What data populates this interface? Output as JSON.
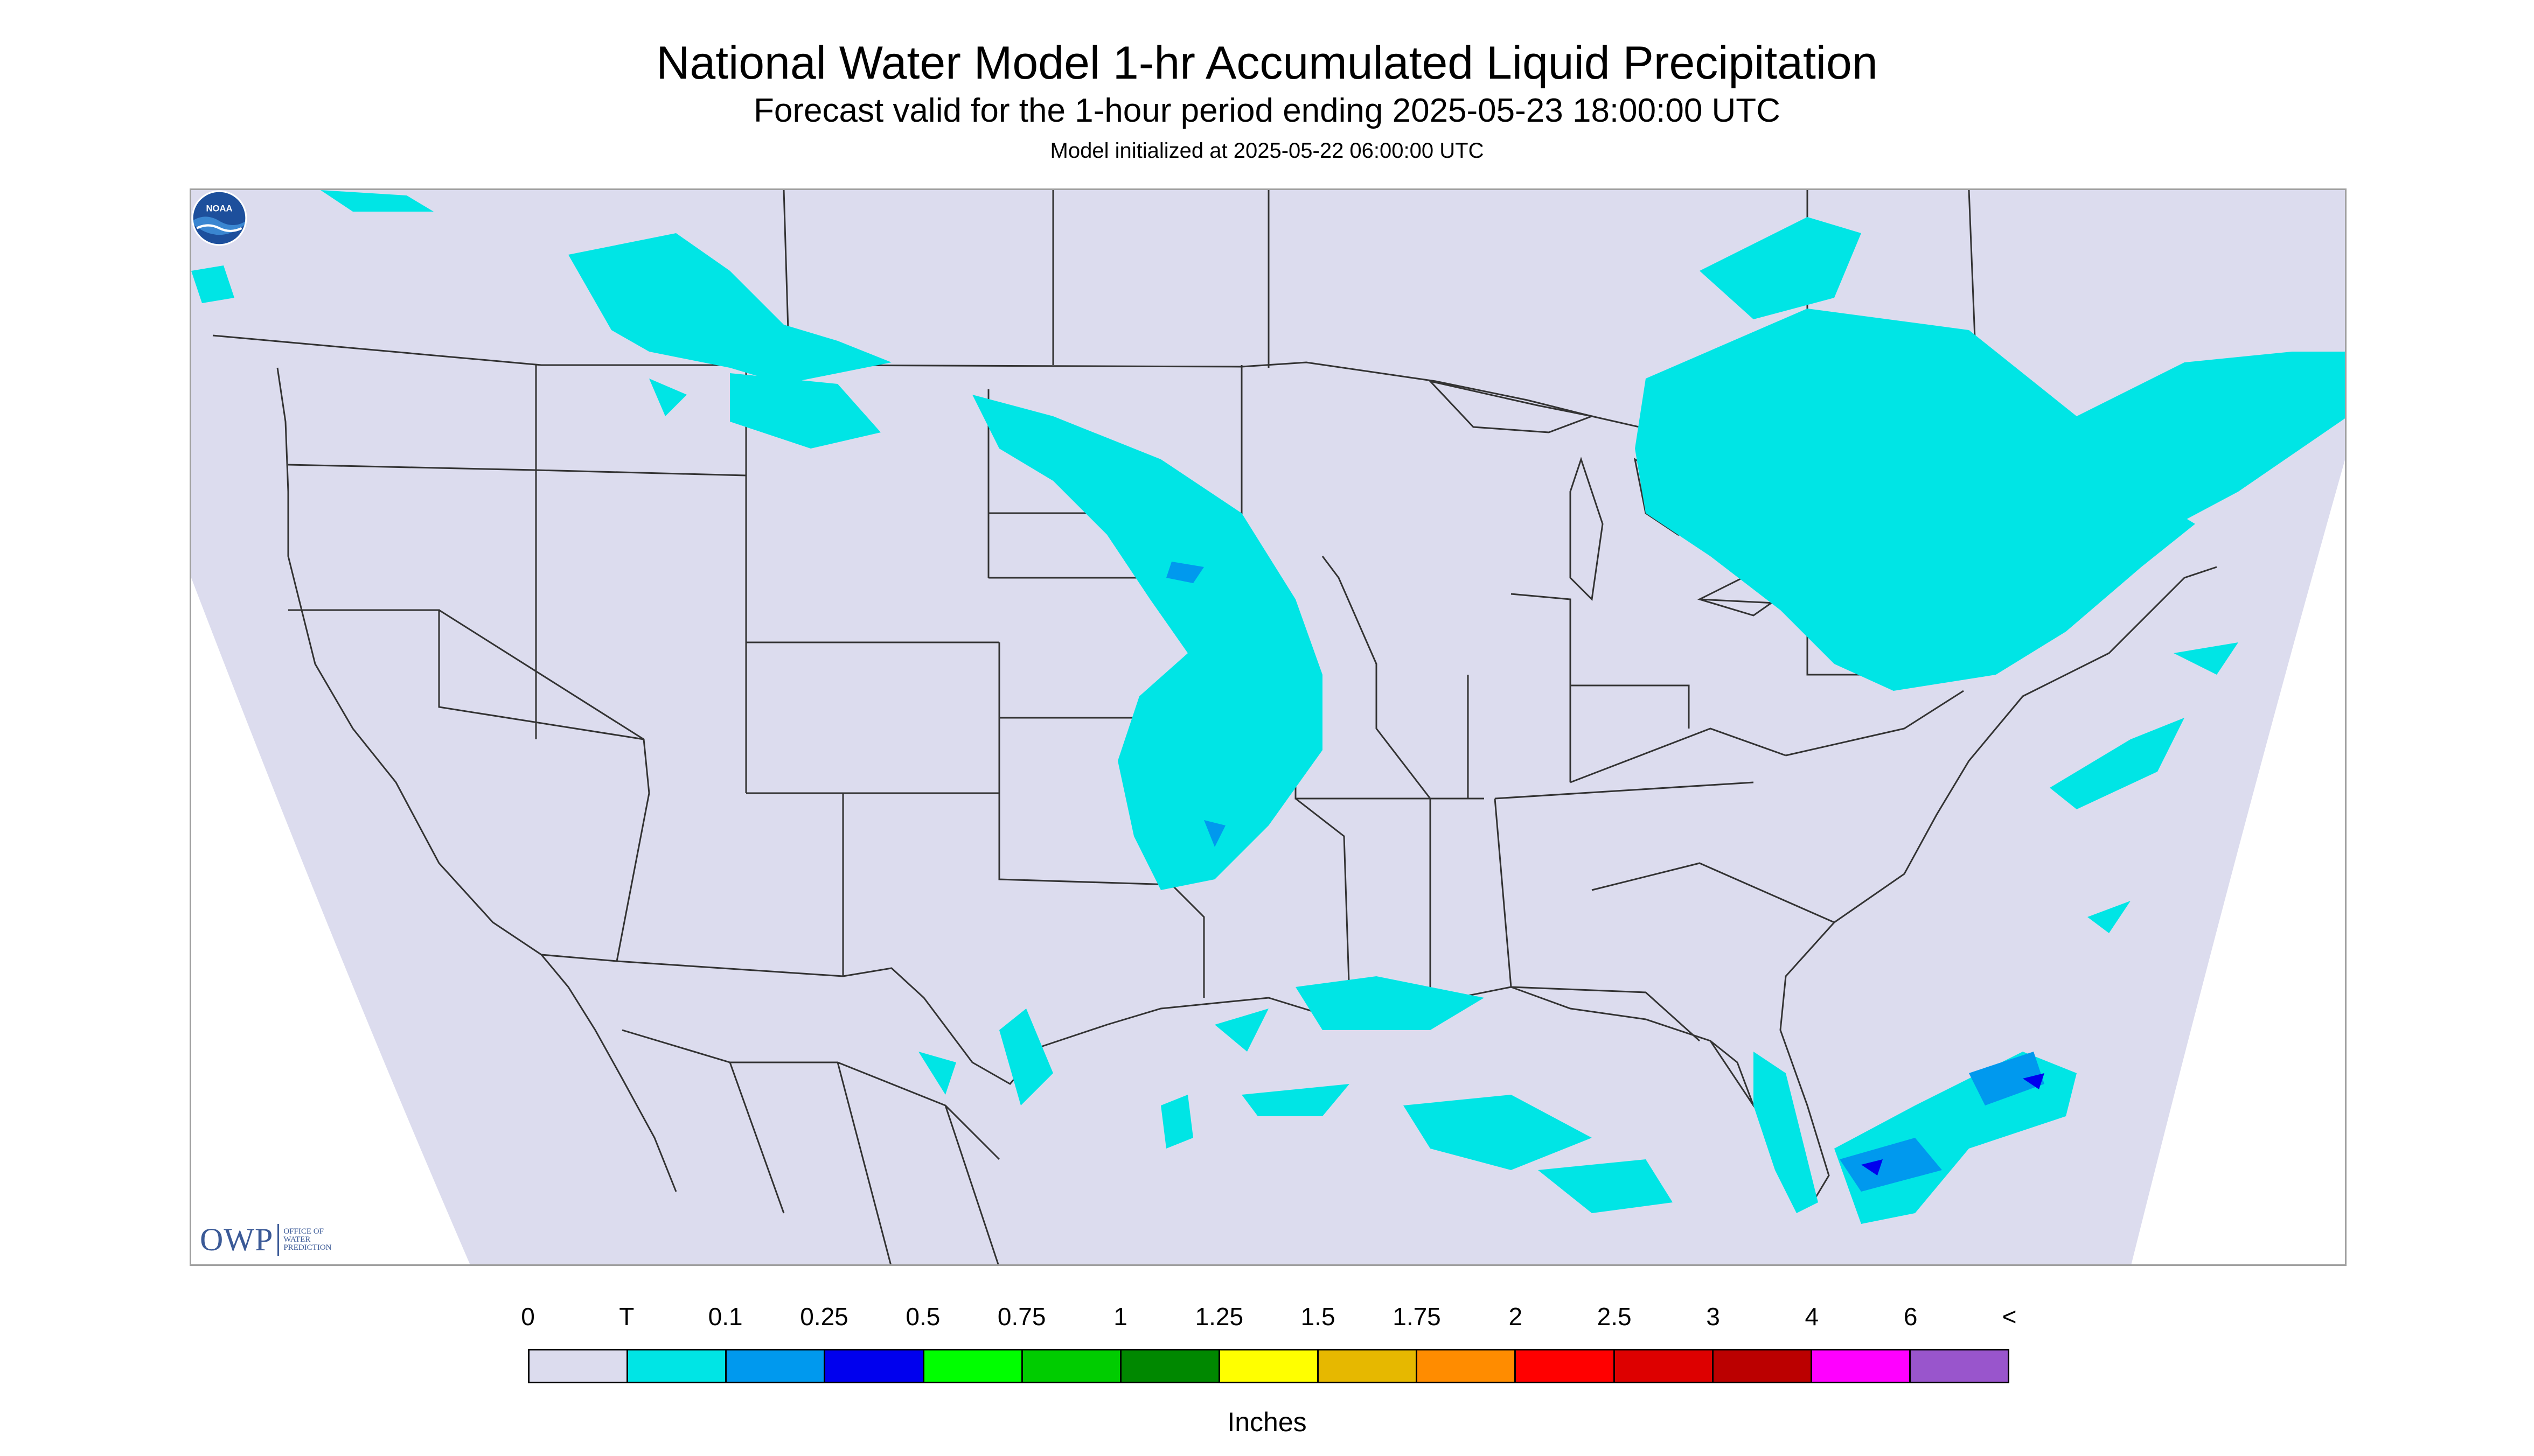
{
  "header": {
    "title": "National Water Model 1-hr Accumulated Liquid Precipitation",
    "subtitle": "Forecast valid for the 1-hour period ending 2025-05-23 18:00:00 UTC",
    "model_init": "Model initialized at 2025-05-22 06:00:00 UTC"
  },
  "logos": {
    "owp_mark": "OWP",
    "owp_text": [
      "OFFICE OF",
      "WATER",
      "PREDICTION"
    ],
    "noaa_text": "NOAA"
  },
  "legend": {
    "labels": [
      "0",
      "T",
      "0.1",
      "0.25",
      "0.5",
      "0.75",
      "1",
      "1.25",
      "1.5",
      "1.75",
      "2",
      "2.5",
      "3",
      "4",
      "6",
      "<"
    ],
    "colors": [
      "#dcdcee",
      "#00e5e5",
      "#0099ee",
      "#0000ee",
      "#00ff00",
      "#00cc00",
      "#008800",
      "#ffff00",
      "#e6b800",
      "#ff8c00",
      "#ff0000",
      "#dd0000",
      "#bb0000",
      "#ff00ff",
      "#9955cc"
    ],
    "units": "Inches"
  },
  "map": {
    "background_color": "#dcdcee",
    "outside_domain_color": "#ffffff",
    "boundary_color": "#333333",
    "precip_colors": {
      "trace": "#00e5e5",
      "light": "#0099ee",
      "moderate": "#0000ee"
    }
  }
}
